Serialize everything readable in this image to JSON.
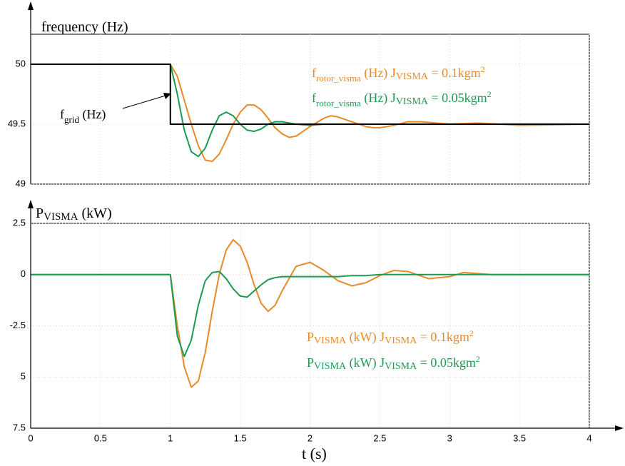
{
  "chart_data": [
    {
      "type": "line",
      "title": "frequency (Hz)",
      "x": [
        0,
        0.5,
        1,
        1,
        1.05,
        1.1,
        1.15,
        1.2,
        1.25,
        1.3,
        1.35,
        1.4,
        1.45,
        1.5,
        1.55,
        1.6,
        1.65,
        1.7,
        1.75,
        1.8,
        1.85,
        1.9,
        2.0,
        2.1,
        2.15,
        2.2,
        2.3,
        2.4,
        2.45,
        2.5,
        2.6,
        2.7,
        2.8,
        3.0,
        3.2,
        3.5,
        4.0
      ],
      "series": [
        {
          "name": [
            "f",
            "rotor_visma",
            " (Hz)  J",
            "VISMA",
            " = 0.1kgm",
            "2"
          ],
          "color": "#e8892a",
          "values": [
            50,
            50,
            50,
            50,
            49.9,
            49.7,
            49.5,
            49.32,
            49.2,
            49.19,
            49.25,
            49.37,
            49.5,
            49.6,
            49.66,
            49.66,
            49.62,
            49.55,
            49.47,
            49.42,
            49.39,
            49.4,
            49.48,
            49.55,
            49.57,
            49.56,
            49.52,
            49.48,
            49.47,
            49.47,
            49.49,
            49.52,
            49.52,
            49.5,
            49.51,
            49.49,
            49.5
          ]
        },
        {
          "name": [
            "f",
            "rotor_visma",
            " (Hz)  J",
            "VISMA",
            " = 0.05kgm",
            "2"
          ],
          "color": "#1d9a52",
          "values": [
            50,
            50,
            50,
            50,
            49.75,
            49.45,
            49.27,
            49.23,
            49.3,
            49.45,
            49.57,
            49.6,
            49.57,
            49.5,
            49.45,
            49.44,
            49.46,
            49.5,
            49.52,
            49.52,
            49.51,
            49.5,
            49.49,
            49.5,
            49.5,
            49.5,
            49.5,
            49.5,
            49.5,
            49.5,
            49.5,
            49.5,
            49.5,
            49.5,
            49.5,
            49.5,
            49.5
          ]
        },
        {
          "name": [
            "f",
            "grid",
            " (Hz)"
          ],
          "color": "#000000",
          "values": [
            50,
            50,
            50,
            49.5,
            49.5,
            49.5,
            49.5,
            49.5,
            49.5,
            49.5,
            49.5,
            49.5,
            49.5,
            49.5,
            49.5,
            49.5,
            49.5,
            49.5,
            49.5,
            49.5,
            49.5,
            49.5,
            49.5,
            49.5,
            49.5,
            49.5,
            49.5,
            49.5,
            49.5,
            49.5,
            49.5,
            49.5,
            49.5,
            49.5,
            49.5,
            49.5,
            49.5
          ]
        }
      ],
      "xlim": [
        0,
        4
      ],
      "xticks": [
        0,
        0.5,
        1,
        1.5,
        2,
        2.5,
        3,
        3.5,
        4
      ],
      "ylim": [
        49,
        50.25
      ],
      "yticks": [
        49,
        49.5,
        50
      ],
      "grid": true
    },
    {
      "type": "line",
      "title": [
        "P",
        "VISMA",
        " (kW)"
      ],
      "xlabel": "t (s)",
      "x": [
        0,
        0.5,
        1,
        1.05,
        1.1,
        1.15,
        1.2,
        1.25,
        1.3,
        1.35,
        1.4,
        1.45,
        1.5,
        1.55,
        1.6,
        1.65,
        1.7,
        1.75,
        1.8,
        1.9,
        2.0,
        2.1,
        2.2,
        2.3,
        2.4,
        2.5,
        2.6,
        2.7,
        2.85,
        3.0,
        3.1,
        3.3,
        3.5,
        4.0
      ],
      "series": [
        {
          "name": [
            "P",
            "VISMA",
            " (kW)   J",
            "VISMA",
            " = 0.1kgm",
            "2"
          ],
          "color": "#e8892a",
          "values": [
            0,
            0,
            0,
            -2.5,
            -4.5,
            -5.5,
            -5.2,
            -3.8,
            -1.8,
            0.0,
            1.2,
            1.7,
            1.4,
            0.6,
            -0.5,
            -1.4,
            -1.8,
            -1.5,
            -0.8,
            0.4,
            0.6,
            0.2,
            -0.3,
            -0.55,
            -0.4,
            -0.05,
            0.2,
            0.15,
            -0.2,
            -0.1,
            0.1,
            0,
            0,
            0
          ]
        },
        {
          "name": [
            "P",
            "VISMA",
            " (kW)   J",
            "VISMA",
            " = 0.05kgm",
            "2"
          ],
          "color": "#1d9a52",
          "values": [
            0,
            0,
            0,
            -3,
            -4,
            -3.2,
            -1.5,
            -0.3,
            0.1,
            0.15,
            -0.2,
            -0.7,
            -1.05,
            -1.1,
            -0.8,
            -0.5,
            -0.25,
            -0.15,
            -0.1,
            -0.1,
            -0.1,
            -0.1,
            -0.1,
            -0.05,
            -0.05,
            0,
            0,
            0,
            0,
            0,
            0,
            0,
            0,
            0
          ]
        }
      ],
      "xlim": [
        0,
        4
      ],
      "xticks": [
        0,
        0.5,
        1,
        1.5,
        2,
        2.5,
        3,
        3.5,
        4
      ],
      "ylim": [
        -7.5,
        2.5
      ],
      "yticks": [
        2.5,
        0,
        -2.5,
        {
          "value": -5,
          "label": "5"
        },
        {
          "value": -7.5,
          "label": "7.5"
        }
      ],
      "grid": true
    }
  ]
}
